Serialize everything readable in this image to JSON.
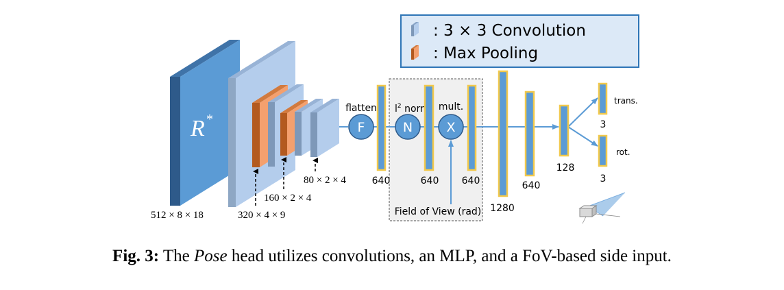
{
  "legend": {
    "conv_label": ": 3 × 3 Convolution",
    "pool_label": ": Max Pooling",
    "conv_icon": "light-blue-block-icon",
    "pool_icon": "orange-block-icon"
  },
  "input": {
    "symbol": "R",
    "superscript": "*",
    "dims": "512  × 8 × 18"
  },
  "volumes": {
    "dims_1": "320  × 4 × 9",
    "dims_2": "160  × 2 × 4",
    "dims_3": "80  × 2 × 4"
  },
  "ops": {
    "flatten_label": "flatten",
    "flatten_symbol": "F",
    "norm_prefix": "l",
    "norm_sup": "2",
    "norm_suffix": " norm",
    "norm_symbol": "N",
    "mult_label": "mult.",
    "mult_symbol": "X"
  },
  "fov_label": "Field of View (rad)",
  "layers": {
    "l1": "640",
    "l2": "640",
    "l3": "640",
    "l4": "1280",
    "l5": "640",
    "l6": "128"
  },
  "outputs": {
    "trans_label": "trans.",
    "trans_size": "3",
    "rot_label": "rot.",
    "rot_size": "3"
  },
  "caption": {
    "fig_label": "Fig. 3:",
    "text_before": " The ",
    "emph": "Pose",
    "text_after": " head utilizes convolutions, an MLP, and a FoV-based side input."
  },
  "colors": {
    "input_front": "#5b9bd5",
    "input_side": "#2e5a8a",
    "conv_front": "#b4cdec",
    "conv_side": "#7e98b8",
    "pool_front": "#f4a06e",
    "pool_side": "#b35a1f",
    "bar_fill": "#5b9bd5",
    "bar_border": "#f2c94c",
    "circle": "#5b9bd5",
    "arrow": "#5b9bd5",
    "legend_border": "#2e75b6",
    "legend_bg": "#dce9f7"
  }
}
